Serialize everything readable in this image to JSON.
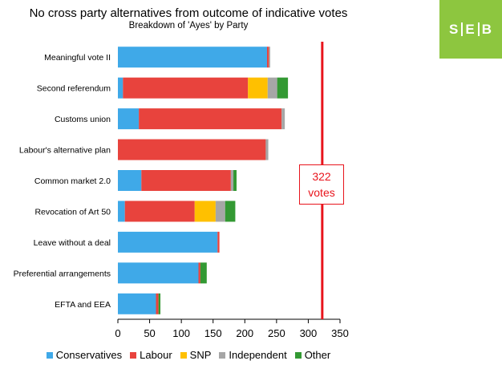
{
  "chart_data": {
    "type": "bar",
    "orientation": "horizontal",
    "stacked": true,
    "title": "No cross party alternatives from outcome of indicative votes",
    "subtitle": "Breakdown of 'Ayes' by Party",
    "categories": [
      "Meaningful vote II",
      "Second referendum",
      "Customs union",
      "Labour's alternative plan",
      "Common market 2.0",
      "Revocation of Art 50",
      "Leave without a deal",
      "Preferential arrangements",
      "EFTA and EEA"
    ],
    "series": [
      {
        "name": "Conservatives",
        "color": "#3fa9e8",
        "values": [
          235,
          8,
          33,
          0,
          37,
          11,
          157,
          127,
          60
        ]
      },
      {
        "name": "Labour",
        "color": "#e8433d",
        "values": [
          3,
          197,
          225,
          233,
          141,
          110,
          3,
          3,
          4
        ]
      },
      {
        "name": "SNP",
        "color": "#ffc000",
        "values": [
          0,
          31,
          0,
          0,
          0,
          33,
          0,
          0,
          0
        ]
      },
      {
        "name": "Independent",
        "color": "#a6a6a6",
        "values": [
          2,
          15,
          5,
          4,
          4,
          15,
          0,
          0,
          0
        ]
      },
      {
        "name": "Other",
        "color": "#339933",
        "values": [
          0,
          17,
          0,
          0,
          5,
          16,
          0,
          10,
          3
        ]
      }
    ],
    "xlim": [
      0,
      350
    ],
    "xticks": [
      0,
      50,
      100,
      150,
      200,
      250,
      300,
      350
    ],
    "grid": false,
    "legend_position": "bottom",
    "threshold": {
      "value": 322,
      "label_number": "322",
      "label_unit": "votes",
      "color": "#e8141c"
    }
  },
  "brand": {
    "part1": "S",
    "part2": "E",
    "part3": "B",
    "color": "#8dc63f"
  }
}
